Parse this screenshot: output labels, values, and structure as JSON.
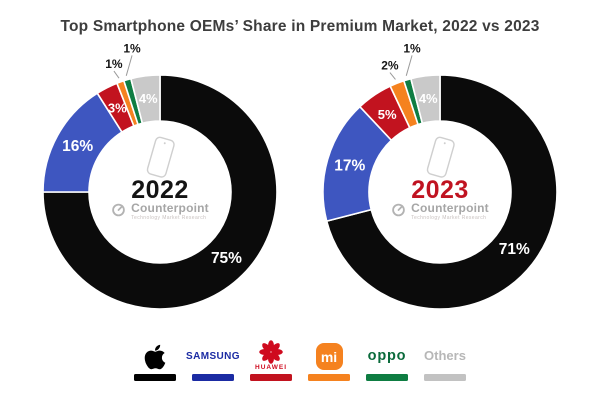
{
  "page": {
    "title": "Top Smartphone OEMs’ Share in Premium Market, 2022 vs 2023",
    "background": "#ffffff"
  },
  "watermark": {
    "brand": "Counterpoint",
    "tagline": "Technology Market Research"
  },
  "chart_data": [
    {
      "type": "pie",
      "donut": true,
      "title": "2022",
      "title_color": "#141414",
      "start_angle_deg": 0,
      "direction": "clockwise",
      "legend_position": "bottom",
      "categories": [
        "Apple",
        "Samsung",
        "Huawei",
        "Xiaomi",
        "OPPO",
        "Others"
      ],
      "values": [
        75,
        16,
        3,
        1,
        1,
        4
      ],
      "labels": [
        "75%",
        "16%",
        "3%",
        "1%",
        "1%",
        "4%"
      ],
      "colors": [
        "#0b0b0b",
        "#3e56c0",
        "#c2131f",
        "#f5821f",
        "#0e7d42",
        "#c9c9c9"
      ],
      "label_placement": [
        "in",
        "in",
        "in",
        "out",
        "out",
        "in"
      ]
    },
    {
      "type": "pie",
      "donut": true,
      "title": "2023",
      "title_color": "#c01321",
      "start_angle_deg": 0,
      "direction": "clockwise",
      "legend_position": "bottom",
      "categories": [
        "Apple",
        "Samsung",
        "Huawei",
        "Xiaomi",
        "OPPO",
        "Others"
      ],
      "values": [
        71,
        17,
        5,
        2,
        1,
        4
      ],
      "labels": [
        "71%",
        "17%",
        "5%",
        "2%",
        "1%",
        "4%"
      ],
      "colors": [
        "#0b0b0b",
        "#3e56c0",
        "#c2131f",
        "#f5821f",
        "#0e7d42",
        "#c9c9c9"
      ],
      "label_placement": [
        "in",
        "in",
        "in",
        "out",
        "out",
        "in"
      ]
    }
  ],
  "legend": {
    "items": [
      {
        "name": "apple",
        "label": "",
        "logo": "apple-logo",
        "color": "#000000",
        "bar_color": "#000000"
      },
      {
        "name": "samsung",
        "label": "SAMSUNG",
        "logo": "samsung-wordmark",
        "color": "#1b2ba3",
        "bar_color": "#1b2ba3"
      },
      {
        "name": "huawei",
        "label": "HUAWEI",
        "logo": "huawei-flower",
        "color": "#cf0a1e",
        "bar_color": "#c2131f"
      },
      {
        "name": "xiaomi",
        "label": "mi",
        "logo": "mi-badge",
        "color": "#f5821f",
        "bar_color": "#f5821f"
      },
      {
        "name": "oppo",
        "label": "oppo",
        "logo": "oppo-wordmark",
        "color": "#0b6b3c",
        "bar_color": "#0e7d42"
      },
      {
        "name": "others",
        "label": "Others",
        "logo": "text",
        "color": "#b7b7b7",
        "bar_color": "#c2c2c2"
      }
    ]
  }
}
